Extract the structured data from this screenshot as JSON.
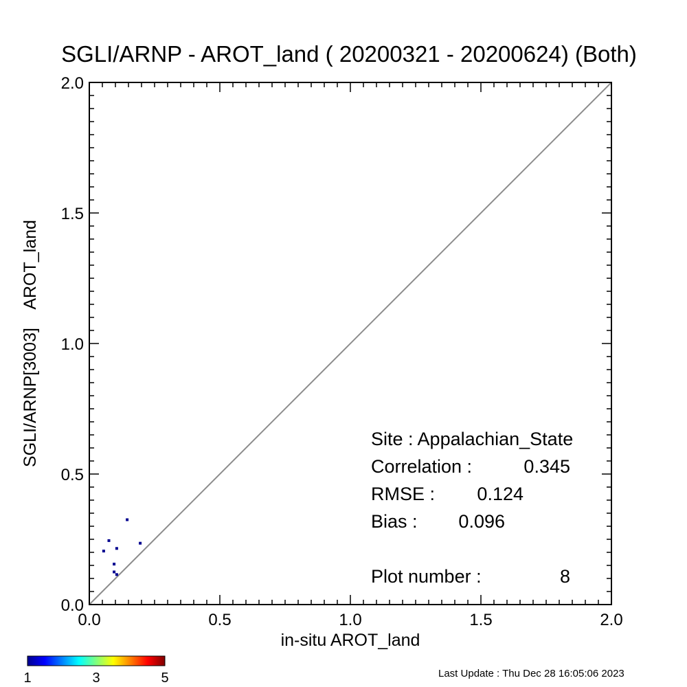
{
  "chart_data": {
    "type": "scatter",
    "title": "SGLI/ARNP - AROT_land ( 20200321 - 20200624) (Both)",
    "xlabel": "in-situ AROT_land",
    "ylabel": "SGLI/ARNP[3003]    AROT_land",
    "xlim": [
      0.0,
      2.0
    ],
    "ylim": [
      0.0,
      2.0
    ],
    "x_ticks": [
      "0.0",
      "0.5",
      "1.0",
      "1.5",
      "2.0"
    ],
    "y_ticks": [
      "0.0",
      "0.5",
      "1.0",
      "1.5",
      "2.0"
    ],
    "identity_line": true,
    "grid": false,
    "points": [
      {
        "x": 0.055,
        "y": 0.205
      },
      {
        "x": 0.075,
        "y": 0.245
      },
      {
        "x": 0.095,
        "y": 0.155
      },
      {
        "x": 0.095,
        "y": 0.125
      },
      {
        "x": 0.105,
        "y": 0.215
      },
      {
        "x": 0.105,
        "y": 0.115
      },
      {
        "x": 0.145,
        "y": 0.325
      },
      {
        "x": 0.195,
        "y": 0.235
      }
    ],
    "point_color": "#00008f",
    "stats": {
      "site_label": "Site : Appalachian_State",
      "correlation_label": "Correlation :",
      "correlation_value": "0.345",
      "rmse_label": "RMSE :",
      "rmse_value": "0.124",
      "bias_label": "Bias :",
      "bias_value": "0.096",
      "plot_number_label": "Plot number :",
      "plot_number_value": "8"
    },
    "colorbar": {
      "tick_labels": [
        "1",
        "3",
        "5"
      ],
      "colormap": "jet"
    }
  },
  "footer": {
    "last_update": "Last Update : Thu Dec 28 16:05:06 2023"
  }
}
